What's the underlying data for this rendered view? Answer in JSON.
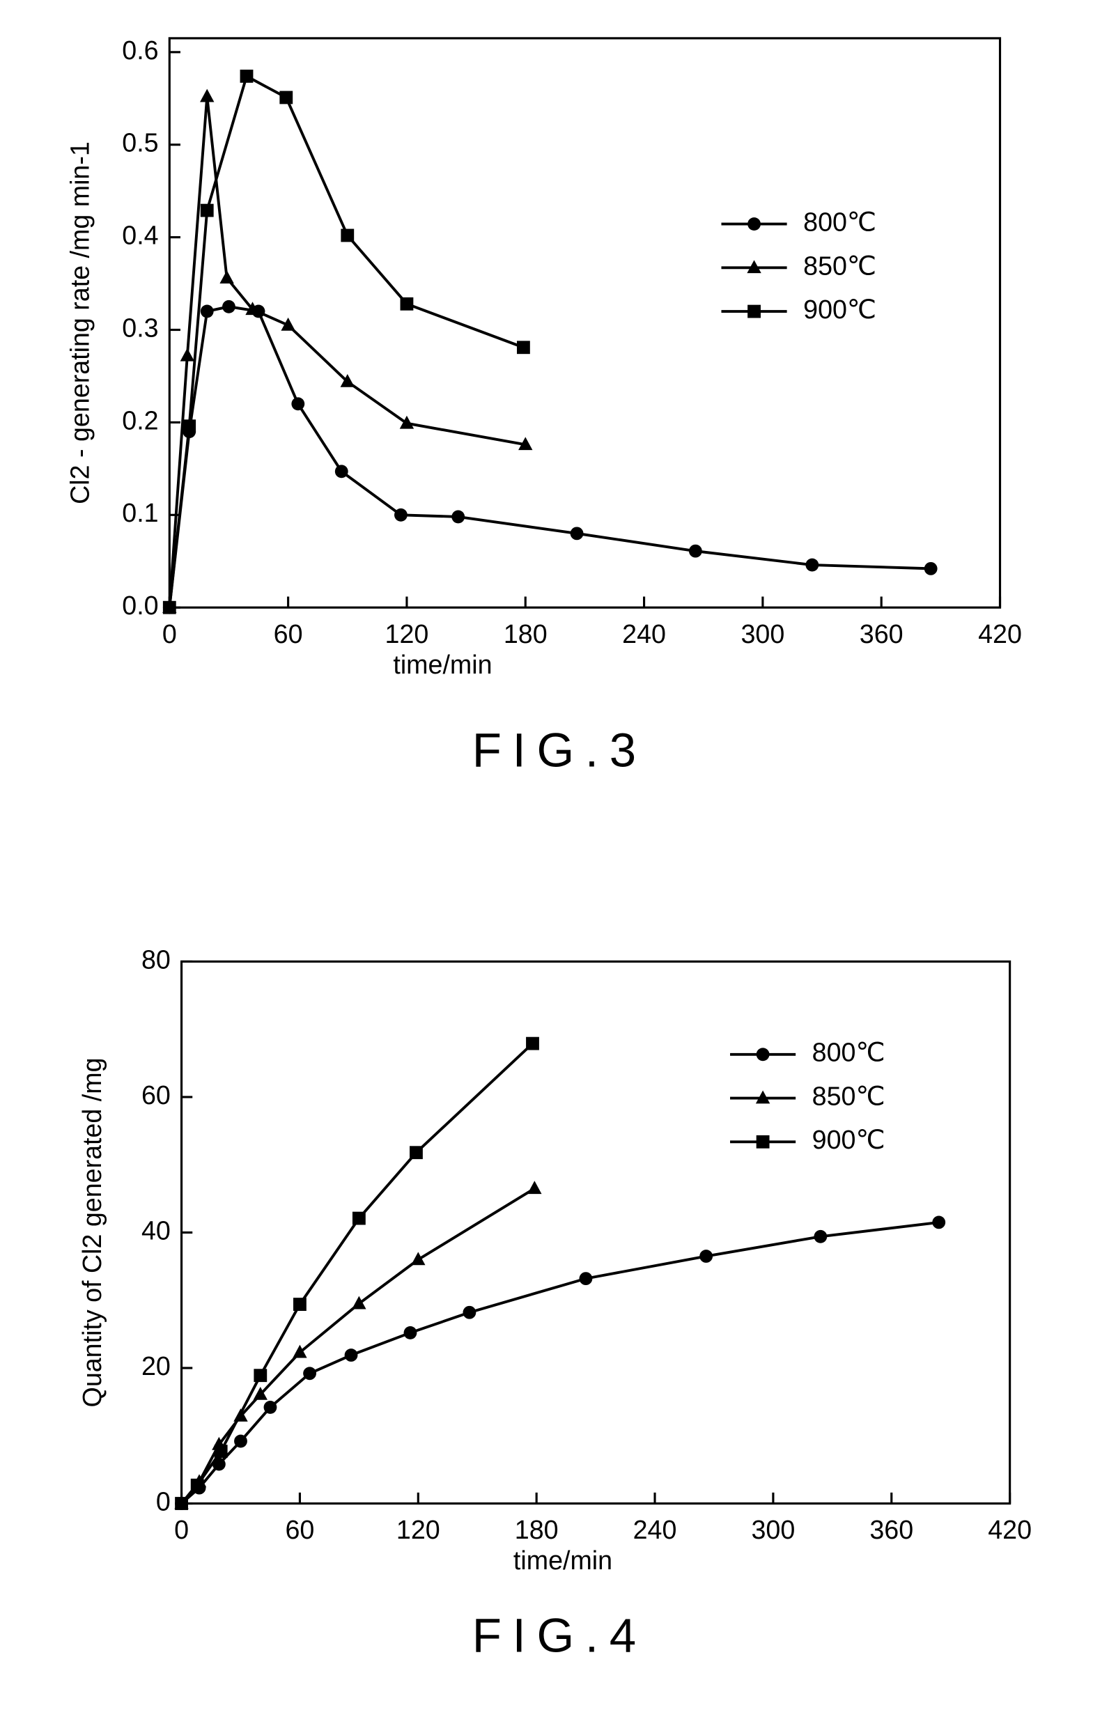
{
  "chart_data": [
    {
      "type": "line",
      "title": "FIG.3",
      "x_label": "time/min",
      "y_label": "Cl2 - generating rate /mg min-1",
      "xlim": [
        0,
        420
      ],
      "xticks": [
        0,
        60,
        120,
        180,
        240,
        300,
        360,
        420
      ],
      "ylim": [
        0,
        0.615
      ],
      "yticks": [
        {
          "value": 0,
          "label": "0.0"
        },
        0.1,
        0.2,
        0.3,
        0.4,
        0.5,
        0.6
      ],
      "legend": "upper right",
      "series": [
        {
          "name": "800℃",
          "color": "#000000",
          "marker": "circle",
          "x": [
            0,
            10,
            19,
            30,
            45,
            65,
            87,
            117,
            146,
            206,
            266,
            325,
            385
          ],
          "values": [
            0,
            0.19,
            0.32,
            0.325,
            0.32,
            0.22,
            0.147,
            0.1,
            0.098,
            0.08,
            0.061,
            0.046,
            0.042
          ]
        },
        {
          "name": "850℃",
          "color": "#000000",
          "marker": "triangle",
          "x": [
            0,
            9,
            19,
            29,
            42,
            60,
            90,
            120,
            180
          ],
          "values": [
            0,
            0.272,
            0.552,
            0.356,
            0.322,
            0.305,
            0.244,
            0.199,
            0.176
          ]
        },
        {
          "name": "900℃",
          "color": "#000000",
          "marker": "square",
          "x": [
            0,
            10,
            19,
            39,
            59,
            90,
            120,
            179
          ],
          "values": [
            0,
            0.196,
            0.429,
            0.574,
            0.551,
            0.402,
            0.328,
            0.281
          ]
        }
      ]
    },
    {
      "type": "line",
      "title": "FIG.4",
      "x_label": "time/min",
      "y_label": "Quantity of Cl2 generated /mg",
      "xlim": [
        0,
        420
      ],
      "xticks": [
        0,
        60,
        120,
        180,
        240,
        300,
        360,
        420
      ],
      "ylim": [
        0,
        80
      ],
      "yticks": [
        0,
        20,
        40,
        60,
        80
      ],
      "legend": "upper right",
      "series": [
        {
          "name": "800℃",
          "color": "#000000",
          "marker": "circle",
          "x": [
            0,
            9,
            19,
            30,
            45,
            65,
            86,
            116,
            146,
            205,
            266,
            324,
            384
          ],
          "values": [
            0,
            2.3,
            5.8,
            9.2,
            14.2,
            19.2,
            21.9,
            25.2,
            28.2,
            33.2,
            36.5,
            39.4,
            41.5
          ]
        },
        {
          "name": "850℃",
          "color": "#000000",
          "marker": "triangle",
          "x": [
            0,
            9,
            19,
            30,
            40,
            60,
            90,
            120,
            179
          ],
          "values": [
            0,
            3.2,
            8.7,
            12.9,
            16.1,
            22.3,
            29.5,
            36,
            46.5
          ]
        },
        {
          "name": "900℃",
          "color": "#000000",
          "marker": "square",
          "x": [
            0,
            8,
            20,
            40,
            60,
            90,
            119,
            178
          ],
          "values": [
            0,
            2.7,
            7.7,
            18.9,
            29.4,
            42.1,
            51.8,
            67.9
          ]
        }
      ]
    }
  ]
}
